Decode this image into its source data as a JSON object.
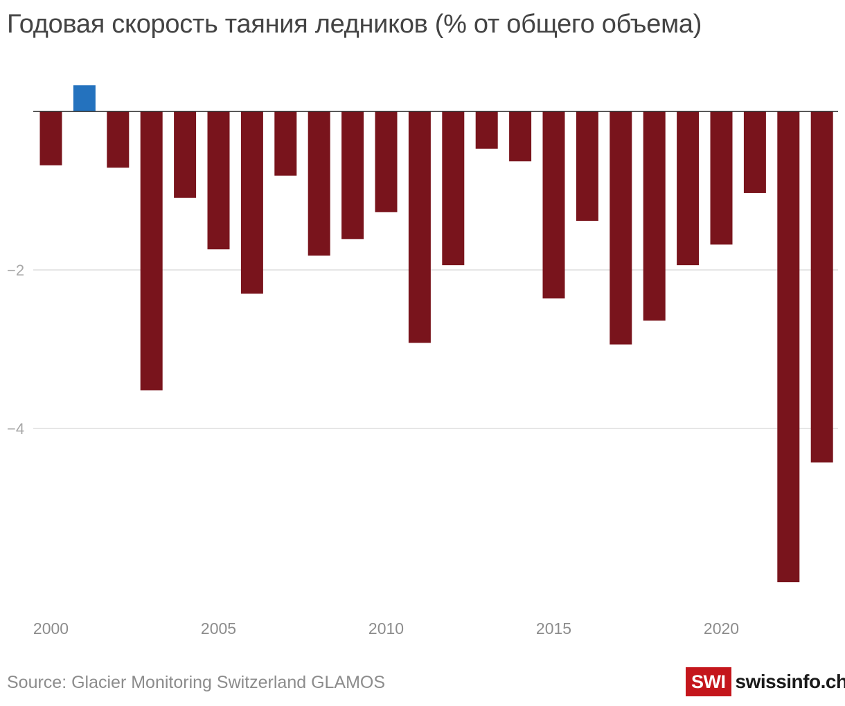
{
  "chart_data": {
    "type": "bar",
    "title": "Годовая скорость таяния ледников (% от общего объема)",
    "xlabel": "",
    "ylabel": "",
    "x": [
      2000,
      2001,
      2002,
      2003,
      2004,
      2005,
      2006,
      2007,
      2008,
      2009,
      2010,
      2011,
      2012,
      2013,
      2014,
      2015,
      2016,
      2017,
      2018,
      2019,
      2020,
      2021,
      2022,
      2023
    ],
    "values": [
      -0.68,
      0.33,
      -0.71,
      -3.52,
      -1.09,
      -1.74,
      -2.3,
      -0.81,
      -1.82,
      -1.61,
      -1.27,
      -2.92,
      -1.94,
      -0.47,
      -0.63,
      -2.36,
      -1.38,
      -2.94,
      -2.64,
      -1.94,
      -1.68,
      -1.03,
      -5.94,
      -4.43
    ],
    "x_ticks": [
      2000,
      2005,
      2010,
      2015,
      2020
    ],
    "x_tick_labels": [
      "2000",
      "2005",
      "2010",
      "2015",
      "2020"
    ],
    "y_ticks": [
      -2,
      -4
    ],
    "y_tick_labels": [
      "−2",
      "−4"
    ],
    "ylim": [
      -6.2,
      0.5
    ],
    "grid": true,
    "legend": "none",
    "colors": {
      "negative": "#79141c",
      "positive": "#2472be",
      "grid": "#dddddd",
      "zero_line": "#222222",
      "tick_text": "#a8a8a8",
      "x_tick_text": "#8c8c8c"
    }
  },
  "source": "Source: Glacier Monitoring Switzerland GLAMOS",
  "logo": {
    "mark": "SWI",
    "name": "swissinfo.ch"
  }
}
